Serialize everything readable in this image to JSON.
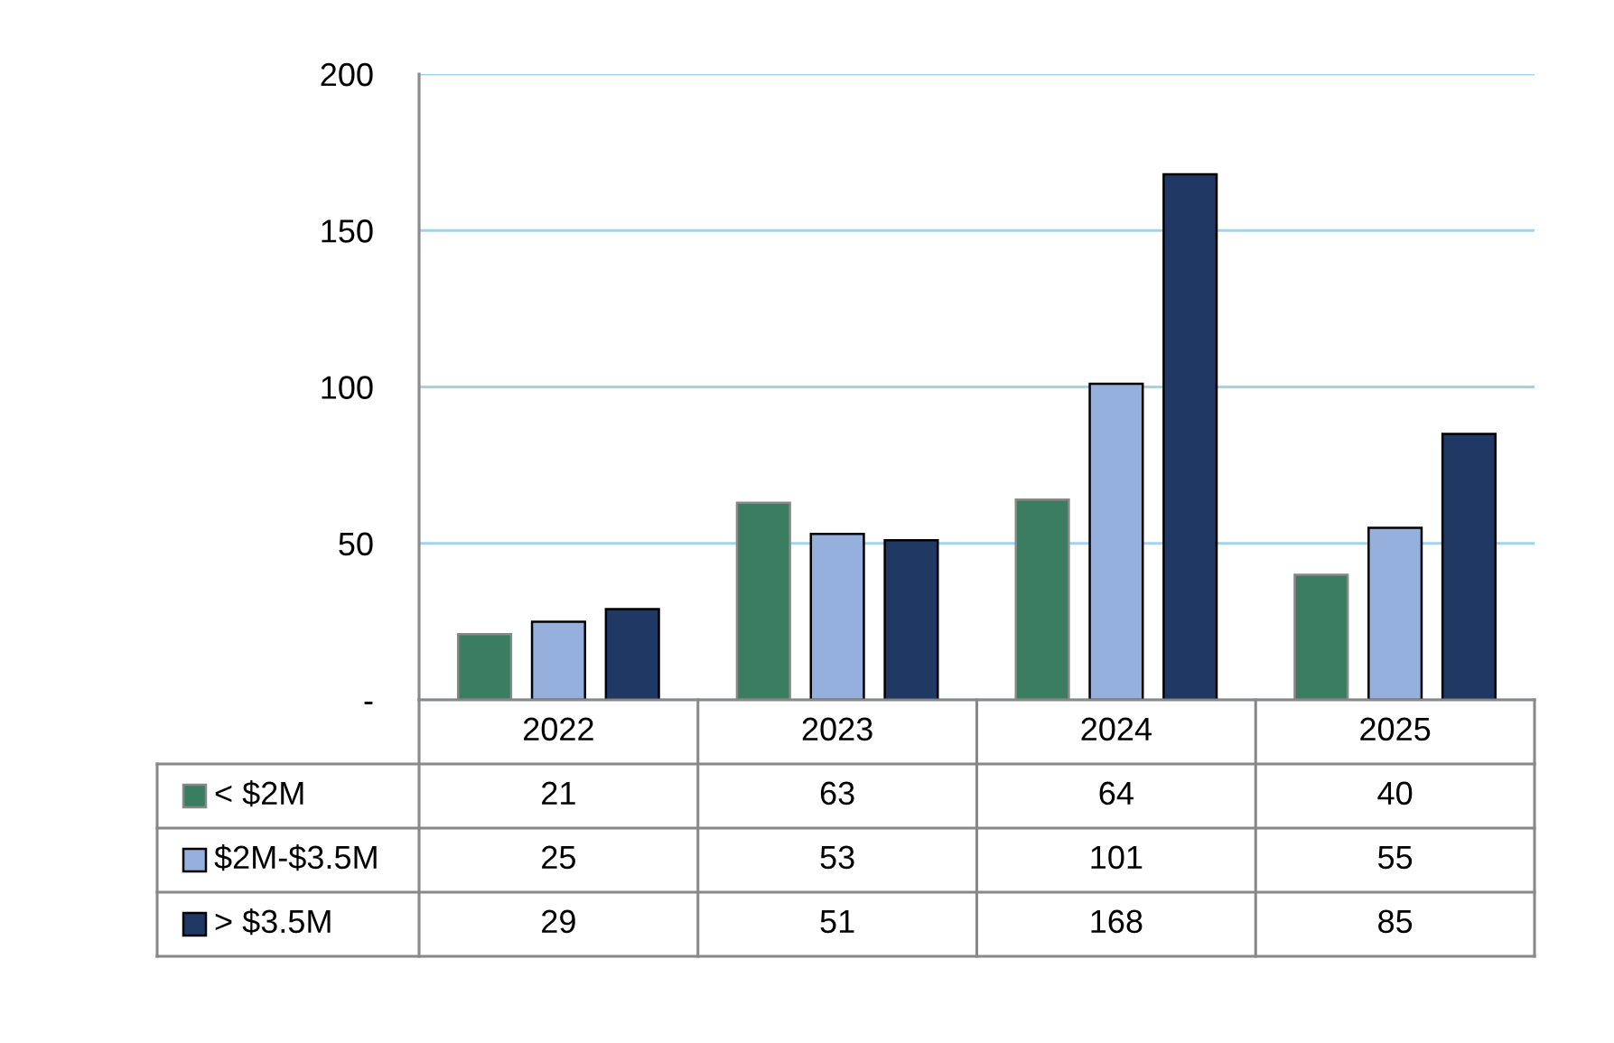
{
  "chart_data": {
    "type": "bar",
    "categories": [
      "2022",
      "2023",
      "2024",
      "2025"
    ],
    "series": [
      {
        "name": "< $2M",
        "color": "#3b7d60",
        "values": [
          21,
          63,
          64,
          40
        ]
      },
      {
        "name": "$2M-$3.5M",
        "color": "#95b0dd",
        "values": [
          25,
          53,
          101,
          55
        ]
      },
      {
        "name": "> $3.5M",
        "color": "#203864",
        "values": [
          29,
          51,
          168,
          85
        ]
      }
    ],
    "ylim": [
      0,
      200
    ],
    "yticks": [
      {
        "value": 0,
        "label": "-"
      },
      50,
      100,
      150,
      200
    ],
    "grid": "y",
    "legend": "bottom",
    "data_labels": true
  }
}
